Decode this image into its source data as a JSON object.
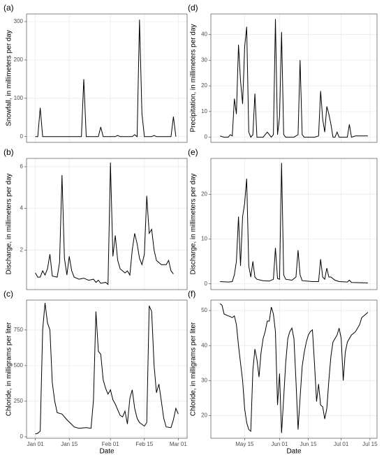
{
  "chart_data": [
    {
      "type": "line",
      "title": "(a)",
      "y_label": "Snowfall, in millimeters per day",
      "color": "#000000",
      "grid": true,
      "xlim": [
        "Jan 01",
        "Mar 01"
      ],
      "ylim": [
        -15,
        320
      ],
      "yticks": [
        0,
        100,
        200,
        300
      ],
      "x": [
        "Jan 01",
        "Jan 02",
        "Jan 03",
        "Jan 04",
        "Jan 10",
        "Jan 20",
        "Jan 21",
        "Jan 22",
        "Jan 27",
        "Jan 28",
        "Jan 29",
        "Feb 03",
        "Feb 04",
        "Feb 05",
        "Feb 10",
        "Feb 11",
        "Feb 12",
        "Feb 13",
        "Feb 14",
        "Feb 15",
        "Feb 18",
        "Feb 19",
        "Feb 20",
        "Feb 26",
        "Feb 27",
        "Feb 28"
      ],
      "values": [
        0,
        0,
        75,
        0,
        0,
        0,
        150,
        0,
        0,
        25,
        0,
        0,
        3,
        0,
        0,
        5,
        0,
        305,
        60,
        0,
        0,
        3,
        0,
        0,
        52,
        0
      ]
    },
    {
      "type": "line",
      "title": "(b)",
      "y_label": "Discharge, in millimeters per day",
      "color": "#000000",
      "grid": true,
      "xlim": [
        "Jan 01",
        "Mar 01"
      ],
      "ylim": [
        0.1,
        6.4
      ],
      "yticks": [
        2,
        4,
        6
      ],
      "x": [
        "Jan 01",
        "Jan 02",
        "Jan 03",
        "Jan 04",
        "Jan 05",
        "Jan 06",
        "Jan 07",
        "Jan 08",
        "Jan 10",
        "Jan 11",
        "Jan 12",
        "Jan 13",
        "Jan 14",
        "Jan 15",
        "Jan 16",
        "Jan 17",
        "Jan 19",
        "Jan 21",
        "Jan 23",
        "Jan 25",
        "Jan 26",
        "Jan 27",
        "Jan 28",
        "Jan 30",
        "Jan 31",
        "Feb 01",
        "Feb 02",
        "Feb 03",
        "Feb 04",
        "Feb 05",
        "Feb 07",
        "Feb 08",
        "Feb 09",
        "Feb 10",
        "Feb 11",
        "Feb 12",
        "Feb 13",
        "Feb 14",
        "Feb 15",
        "Feb 16",
        "Feb 17",
        "Feb 18",
        "Feb 19",
        "Feb 20",
        "Feb 22",
        "Feb 24",
        "Feb 25",
        "Feb 26",
        "Feb 27"
      ],
      "values": [
        0.9,
        0.7,
        0.7,
        1.0,
        0.8,
        1.1,
        1.8,
        0.75,
        0.7,
        1.4,
        5.6,
        1.6,
        0.8,
        1.7,
        1.0,
        0.7,
        0.6,
        0.65,
        0.55,
        0.6,
        0.45,
        0.55,
        0.4,
        0.45,
        0.35,
        6.2,
        1.7,
        2.7,
        1.5,
        1.1,
        0.9,
        1.0,
        0.8,
        2.0,
        2.8,
        2.3,
        1.6,
        1.3,
        1.8,
        4.6,
        2.8,
        3.0,
        2.0,
        1.5,
        1.3,
        1.3,
        1.5,
        1.0,
        0.85
      ]
    },
    {
      "type": "line",
      "title": "(c)",
      "y_label": "Chloride, in milligrams per liter",
      "x_label": "Date",
      "color": "#000000",
      "grid": true,
      "xlim": [
        "Jan 01",
        "Mar 01"
      ],
      "xticks": [
        "Jan 01",
        "Jan 15",
        "Feb 01",
        "Feb 15",
        "Mar 01"
      ],
      "ylim": [
        -10,
        960
      ],
      "yticks": [
        0,
        250,
        500,
        750
      ],
      "x": [
        "Jan 01",
        "Jan 02",
        "Jan 03",
        "Jan 04",
        "Jan 05",
        "Jan 06",
        "Jan 07",
        "Jan 08",
        "Jan 09",
        "Jan 10",
        "Jan 12",
        "Jan 14",
        "Jan 17",
        "Jan 19",
        "Jan 22",
        "Jan 24",
        "Jan 25",
        "Jan 26",
        "Jan 27",
        "Jan 28",
        "Jan 29",
        "Jan 30",
        "Jan 31",
        "Feb 01",
        "Feb 02",
        "Feb 03",
        "Feb 04",
        "Feb 05",
        "Feb 06",
        "Feb 07",
        "Feb 08",
        "Feb 09",
        "Feb 10",
        "Feb 11",
        "Feb 12",
        "Feb 13",
        "Feb 15",
        "Feb 16",
        "Feb 17",
        "Feb 18",
        "Feb 19",
        "Feb 20",
        "Feb 21",
        "Feb 22",
        "Feb 23",
        "Feb 24",
        "Feb 26",
        "Feb 27",
        "Feb 28",
        "Mar 01"
      ],
      "values": [
        20,
        25,
        40,
        750,
        940,
        800,
        750,
        380,
        250,
        170,
        160,
        120,
        70,
        60,
        65,
        60,
        260,
        880,
        600,
        580,
        400,
        340,
        300,
        330,
        260,
        230,
        190,
        150,
        140,
        180,
        90,
        270,
        330,
        200,
        130,
        100,
        75,
        100,
        920,
        880,
        500,
        310,
        370,
        250,
        130,
        70,
        65,
        120,
        200,
        160
      ]
    },
    {
      "type": "line",
      "title": "(d)",
      "y_label": "Precipitation, in millimeters per day",
      "color": "#000000",
      "grid": true,
      "xlim": [
        "May 03",
        "Jul 14"
      ],
      "ylim": [
        -2,
        48
      ],
      "yticks": [
        0,
        10,
        20,
        30,
        40
      ],
      "x": [
        "May 03",
        "May 05",
        "May 07",
        "May 08",
        "May 09",
        "May 10",
        "May 11",
        "May 12",
        "May 13",
        "May 14",
        "May 15",
        "May 16",
        "May 17",
        "May 18",
        "May 19",
        "May 20",
        "May 21",
        "May 24",
        "May 26",
        "May 28",
        "May 29",
        "May 30",
        "May 31",
        "Jun 01",
        "Jun 02",
        "Jun 03",
        "Jun 04",
        "Jun 08",
        "Jun 10",
        "Jun 11",
        "Jun 12",
        "Jun 13",
        "Jun 18",
        "Jun 20",
        "Jun 21",
        "Jun 22",
        "Jun 23",
        "Jun 24",
        "Jun 25",
        "Jun 26",
        "Jun 27",
        "Jun 28",
        "Jun 29",
        "Jun 30",
        "Jul 02",
        "Jul 04",
        "Jul 05",
        "Jul 06",
        "Jul 08",
        "Jul 14"
      ],
      "values": [
        0.5,
        0,
        0,
        1,
        0.5,
        15,
        9,
        36,
        22,
        13,
        35,
        43,
        2,
        0,
        1,
        17,
        0,
        0,
        2,
        0,
        1,
        46,
        1,
        8,
        41,
        1,
        0,
        0,
        1,
        30,
        1,
        0,
        0,
        0.5,
        18,
        7,
        2,
        12,
        9,
        5,
        0,
        0,
        2,
        0,
        0,
        0,
        5,
        0,
        0.5,
        0.5
      ]
    },
    {
      "type": "line",
      "title": "(e)",
      "y_label": "Discharge, in millimeters per day",
      "color": "#000000",
      "grid": true,
      "xlim": [
        "May 03",
        "Jul 14"
      ],
      "ylim": [
        -1.3,
        28
      ],
      "yticks": [
        0,
        10,
        20
      ],
      "x": [
        "May 03",
        "May 07",
        "May 09",
        "May 10",
        "May 11",
        "May 12",
        "May 13",
        "May 14",
        "May 15",
        "May 16",
        "May 17",
        "May 18",
        "May 19",
        "May 20",
        "May 21",
        "May 24",
        "May 27",
        "May 29",
        "May 30",
        "May 31",
        "Jun 01",
        "Jun 02",
        "Jun 03",
        "Jun 04",
        "Jun 07",
        "Jun 09",
        "Jun 10",
        "Jun 11",
        "Jun 12",
        "Jun 17",
        "Jun 20",
        "Jun 21",
        "Jun 22",
        "Jun 23",
        "Jun 24",
        "Jun 25",
        "Jun 26",
        "Jun 28",
        "Jun 30",
        "Jul 04",
        "Jul 05",
        "Jul 06",
        "Jul 14"
      ],
      "values": [
        0.5,
        0.4,
        0.5,
        2,
        5,
        15,
        4,
        15,
        18,
        23.5,
        4,
        1.5,
        5,
        1.5,
        1,
        0.7,
        0.6,
        1,
        8,
        1.2,
        1,
        27,
        2,
        1,
        0.8,
        1.5,
        7.5,
        2,
        0.7,
        0.5,
        0.5,
        5.5,
        1.5,
        1,
        3.5,
        1.5,
        1.5,
        0.8,
        0.5,
        0.4,
        0.8,
        0.3,
        0.2
      ]
    },
    {
      "type": "line",
      "title": "(f)",
      "y_label": "Chloride, in milligrams per liter",
      "x_label": "Date",
      "color": "#000000",
      "grid": true,
      "xlim": [
        "May 03",
        "Jul 14"
      ],
      "xticks": [
        "May 15",
        "Jun 01",
        "Jun 15",
        "Jul 01",
        "Jul 15"
      ],
      "ylim": [
        13.5,
        53
      ],
      "yticks": [
        20,
        30,
        40,
        50
      ],
      "x": [
        "May 03",
        "May 04",
        "May 05",
        "May 07",
        "May 09",
        "May 10",
        "May 11",
        "May 12",
        "May 13",
        "May 14",
        "May 15",
        "May 16",
        "May 17",
        "May 18",
        "May 19",
        "May 20",
        "May 21",
        "May 22",
        "May 23",
        "May 24",
        "May 25",
        "May 26",
        "May 27",
        "May 28",
        "May 29",
        "May 30",
        "May 31",
        "Jun 01",
        "Jun 02",
        "Jun 03",
        "Jun 04",
        "Jun 05",
        "Jun 06",
        "Jun 07",
        "Jun 08",
        "Jun 09",
        "Jun 10",
        "Jun 11",
        "Jun 12",
        "Jun 13",
        "Jun 14",
        "Jun 15",
        "Jun 16",
        "Jun 17",
        "Jun 18",
        "Jun 19",
        "Jun 20",
        "Jun 21",
        "Jun 22",
        "Jun 23",
        "Jun 24",
        "Jun 25",
        "Jun 26",
        "Jun 27",
        "Jun 28",
        "Jun 29",
        "Jun 30",
        "Jul 01",
        "Jul 02",
        "Jul 03",
        "Jul 04",
        "Jul 06",
        "Jul 08",
        "Jul 10",
        "Jul 11",
        "Jul 13",
        "Jul 14"
      ],
      "values": [
        52,
        51.5,
        49,
        48.5,
        48,
        48.5,
        46,
        40,
        35,
        30,
        22,
        18,
        16,
        15.5,
        33,
        39,
        36,
        31,
        38,
        42,
        44,
        47,
        47,
        51,
        49,
        44,
        23,
        32,
        15,
        25,
        35,
        42,
        44,
        45,
        42,
        30,
        16,
        25,
        34,
        38,
        41,
        43,
        44,
        44.5,
        35,
        24,
        29,
        23,
        22.5,
        19,
        22,
        30,
        37,
        41,
        42,
        43,
        45,
        42,
        30,
        38,
        41,
        43,
        44,
        46,
        48,
        49,
        49.5
      ]
    }
  ]
}
